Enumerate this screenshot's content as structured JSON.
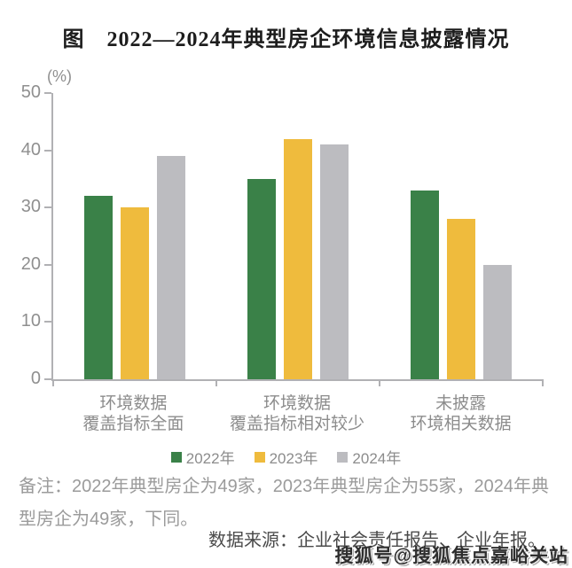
{
  "title": "图　2022—2024年典型房企环境信息披露情况",
  "chart_data": {
    "type": "bar",
    "title": "2022—2024年典型房企环境信息披露情况",
    "unit_label": "(%)",
    "categories": [
      "环境数据\n覆盖指标全面",
      "环境数据\n覆盖指标相对较少",
      "未披露\n环境相关数据"
    ],
    "series": [
      {
        "name": "2022年",
        "color": "#3a8148",
        "values": [
          32,
          35,
          33
        ]
      },
      {
        "name": "2023年",
        "color": "#efbb3d",
        "values": [
          30,
          42,
          28
        ]
      },
      {
        "name": "2024年",
        "color": "#bcbcc0",
        "values": [
          39,
          41,
          20
        ]
      }
    ],
    "ylim": [
      0,
      50
    ],
    "yticks": [
      0,
      10,
      20,
      30,
      40,
      50
    ],
    "legend_position": "bottom",
    "grid": false
  },
  "note": "备注：2022年典型房企为49家，2023年典型房企为55家，2024年典型房企为49家，下同。",
  "source": "数据来源：企业社会责任报告、企业年报。",
  "watermark": "搜狐号@搜狐焦点嘉峪关站",
  "colors": {
    "axis": "#b1b1b4",
    "tick_label": "#8f8f8f",
    "category_label": "#8c8c8c",
    "note_text": "#9b9b9b",
    "source_text": "#4a4a4a",
    "title_text": "#1d1d1d"
  }
}
